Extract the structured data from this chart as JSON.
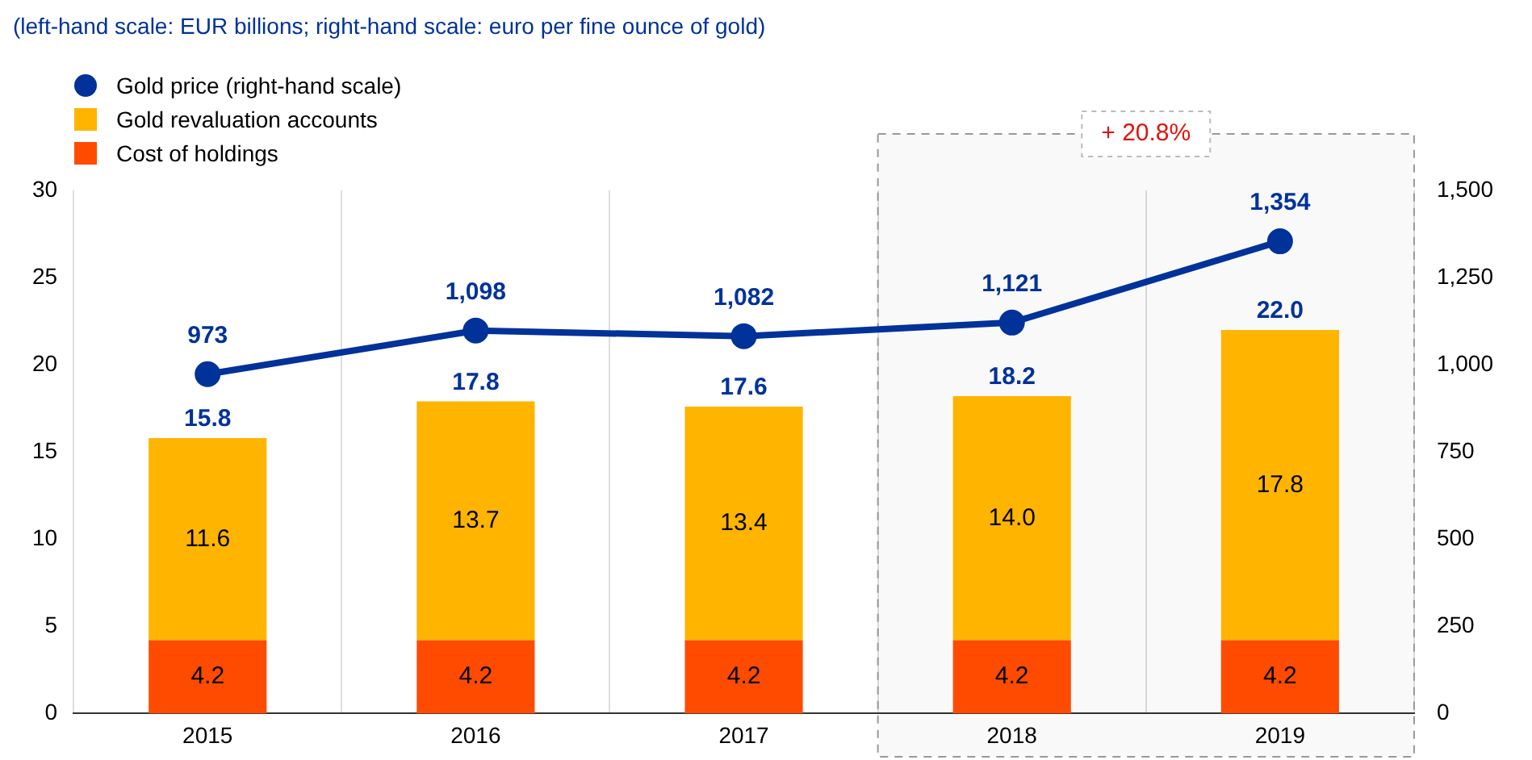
{
  "chart_data": {
    "type": "bar",
    "subtitle": "(left-hand scale: EUR billions; right-hand scale: euro per fine ounce of gold)",
    "categories": [
      "2015",
      "2016",
      "2017",
      "2018",
      "2019"
    ],
    "stacked": true,
    "series": [
      {
        "name": "Cost of holdings",
        "color": "#ff4b00",
        "values": [
          4.2,
          4.2,
          4.2,
          4.2,
          4.2
        ],
        "value_labels": [
          "4.2",
          "4.2",
          "4.2",
          "4.2",
          "4.2"
        ]
      },
      {
        "name": "Gold revaluation accounts",
        "color": "#ffb400",
        "values": [
          11.6,
          13.7,
          13.4,
          14.0,
          17.8
        ],
        "value_labels": [
          "11.6",
          "13.7",
          "13.4",
          "14.0",
          "17.8"
        ]
      },
      {
        "name": "Gold price (right-hand scale)",
        "type": "line",
        "axis": "y2",
        "color": "#003299",
        "values": [
          973,
          1098,
          1082,
          1121,
          1354
        ],
        "value_labels": [
          "973",
          "1,098",
          "1,082",
          "1,121",
          "1,354"
        ]
      }
    ],
    "totals": [
      "15.8",
      "17.8",
      "17.6",
      "18.2",
      "22.0"
    ],
    "ylim": [
      0,
      30
    ],
    "yticks": [
      0,
      5,
      10,
      15,
      20,
      25,
      30
    ],
    "y2lim": [
      0,
      1500
    ],
    "y2ticks": [
      0,
      {
        "value": 250,
        "label": "250"
      },
      {
        "value": 500,
        "label": "500"
      },
      {
        "value": 750,
        "label": "750"
      },
      {
        "value": 1000,
        "label": "1,000"
      },
      {
        "value": 1250,
        "label": "1,250"
      },
      {
        "value": 1500,
        "label": "1,500"
      }
    ],
    "bands": [
      {
        "axis": "x",
        "from": "2018",
        "to": "2019",
        "label": "+ 20.8%"
      }
    ],
    "grid": "x",
    "legend": "top left",
    "marker": "circle",
    "line_style": "solid"
  }
}
